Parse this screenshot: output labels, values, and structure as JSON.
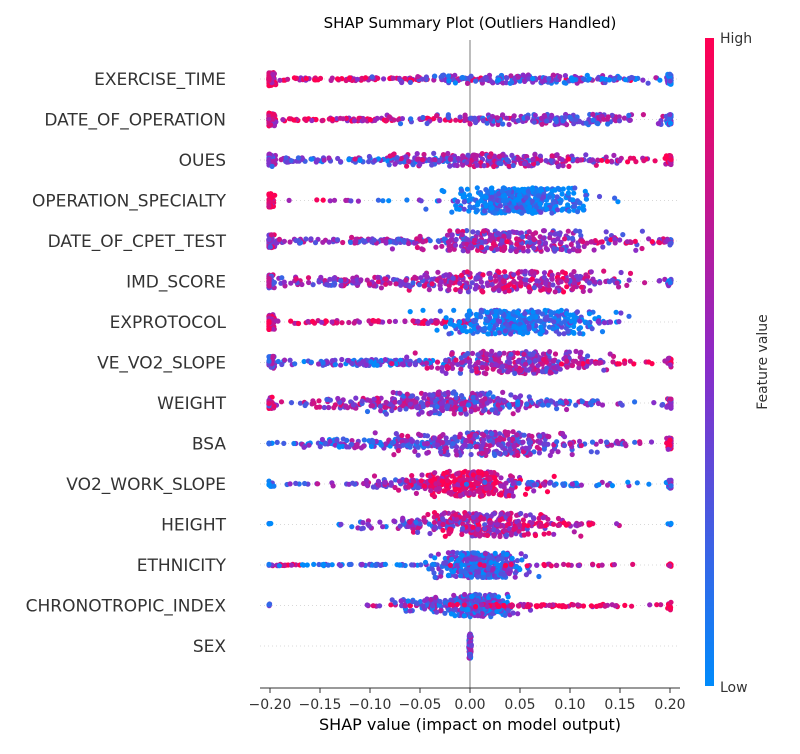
{
  "chart_data": {
    "type": "scatter",
    "subtype": "shap-beeswarm",
    "title": "SHAP Summary Plot (Outliers Handled)",
    "xlabel": "SHAP value (impact on model output)",
    "xlim": [
      -0.21,
      0.21
    ],
    "xticks": [
      -0.2,
      -0.15,
      -0.1,
      -0.05,
      0.0,
      0.05,
      0.1,
      0.15,
      0.2
    ],
    "xtick_labels": [
      "−0.20",
      "−0.15",
      "−0.10",
      "−0.05",
      "0.00",
      "0.05",
      "0.10",
      "0.15",
      "0.20"
    ],
    "grid": false,
    "zero_line": true,
    "colorbar": {
      "label": "Feature value",
      "high_label": "High",
      "low_label": "Low",
      "low_color": "#008bfb",
      "high_color": "#ff0052"
    },
    "features": [
      {
        "name": "EXERCISE_TIME",
        "clusters": [
          {
            "center": -0.2,
            "spread": 0.003,
            "count": 60,
            "width": 0.45,
            "value": 0.85
          },
          {
            "center": -0.1,
            "spread": 0.1,
            "count": 140,
            "width": 0.1,
            "value": 0.8
          },
          {
            "center": 0.06,
            "spread": 0.06,
            "count": 150,
            "width": 0.3,
            "value": 0.35
          },
          {
            "center": 0.15,
            "spread": 0.05,
            "count": 40,
            "width": 0.12,
            "value": 0.15
          },
          {
            "center": 0.2,
            "spread": 0.002,
            "count": 25,
            "width": 0.35,
            "value": 0.2
          }
        ]
      },
      {
        "name": "DATE_OF_OPERATION",
        "clusters": [
          {
            "center": -0.2,
            "spread": 0.003,
            "count": 55,
            "width": 0.45,
            "value": 0.8
          },
          {
            "center": -0.09,
            "spread": 0.1,
            "count": 130,
            "width": 0.1,
            "value": 0.8
          },
          {
            "center": 0.07,
            "spread": 0.065,
            "count": 170,
            "width": 0.35,
            "value": 0.45
          },
          {
            "center": 0.2,
            "spread": 0.002,
            "count": 25,
            "width": 0.35,
            "value": 0.2
          }
        ]
      },
      {
        "name": "OUES",
        "clusters": [
          {
            "center": -0.2,
            "spread": 0.003,
            "count": 45,
            "width": 0.45,
            "value": 0.35
          },
          {
            "center": -0.08,
            "spread": 0.09,
            "count": 150,
            "width": 0.15,
            "value": 0.3
          },
          {
            "center": 0.03,
            "spread": 0.05,
            "count": 190,
            "width": 0.45,
            "value": 0.55
          },
          {
            "center": 0.15,
            "spread": 0.04,
            "count": 30,
            "width": 0.12,
            "value": 0.8
          },
          {
            "center": 0.2,
            "spread": 0.002,
            "count": 20,
            "width": 0.3,
            "value": 0.85
          }
        ]
      },
      {
        "name": "OPERATION_SPECIALTY",
        "clusters": [
          {
            "center": -0.2,
            "spread": 0.002,
            "count": 40,
            "width": 0.45,
            "value": 0.95
          },
          {
            "center": -0.15,
            "spread": 0.025,
            "count": 8,
            "width": 0.04,
            "value": 0.9
          },
          {
            "center": -0.05,
            "spread": 0.04,
            "count": 14,
            "width": 0.05,
            "value": 0.25
          },
          {
            "center": 0.05,
            "spread": 0.03,
            "count": 430,
            "width": 0.85,
            "value": 0.08
          }
        ]
      },
      {
        "name": "DATE_OF_CPET_TEST",
        "clusters": [
          {
            "center": -0.2,
            "spread": 0.003,
            "count": 40,
            "width": 0.45,
            "value": 0.6
          },
          {
            "center": -0.1,
            "spread": 0.07,
            "count": 130,
            "width": 0.15,
            "value": 0.45
          },
          {
            "center": 0.04,
            "spread": 0.05,
            "count": 260,
            "width": 0.7,
            "value": 0.55
          },
          {
            "center": 0.15,
            "spread": 0.04,
            "count": 40,
            "width": 0.15,
            "value": 0.75
          },
          {
            "center": 0.2,
            "spread": 0.002,
            "count": 15,
            "width": 0.3,
            "value": 0.4
          }
        ]
      },
      {
        "name": "IMD_SCORE",
        "clusters": [
          {
            "center": -0.2,
            "spread": 0.003,
            "count": 30,
            "width": 0.45,
            "value": 0.5
          },
          {
            "center": -0.09,
            "spread": 0.07,
            "count": 160,
            "width": 0.3,
            "value": 0.55
          },
          {
            "center": 0.05,
            "spread": 0.05,
            "count": 240,
            "width": 0.7,
            "value": 0.65
          },
          {
            "center": 0.15,
            "spread": 0.04,
            "count": 25,
            "width": 0.1,
            "value": 0.4
          },
          {
            "center": 0.2,
            "spread": 0.002,
            "count": 10,
            "width": 0.3,
            "value": 0.3
          }
        ]
      },
      {
        "name": "EXPROTOCOL",
        "clusters": [
          {
            "center": -0.2,
            "spread": 0.002,
            "count": 80,
            "width": 0.5,
            "value": 0.9
          },
          {
            "center": -0.12,
            "spread": 0.05,
            "count": 60,
            "width": 0.1,
            "value": 0.85
          },
          {
            "center": -0.03,
            "spread": 0.02,
            "count": 30,
            "width": 0.1,
            "value": 0.75
          },
          {
            "center": 0.05,
            "spread": 0.035,
            "count": 380,
            "width": 0.8,
            "value": 0.08
          },
          {
            "center": 0.12,
            "spread": 0.015,
            "count": 20,
            "width": 0.08,
            "value": 0.15
          }
        ]
      },
      {
        "name": "VE_VO2_SLOPE",
        "clusters": [
          {
            "center": -0.2,
            "spread": 0.003,
            "count": 35,
            "width": 0.45,
            "value": 0.4
          },
          {
            "center": -0.09,
            "spread": 0.05,
            "count": 130,
            "width": 0.2,
            "value": 0.3
          },
          {
            "center": 0.05,
            "spread": 0.04,
            "count": 270,
            "width": 0.75,
            "value": 0.55
          },
          {
            "center": 0.14,
            "spread": 0.04,
            "count": 30,
            "width": 0.12,
            "value": 0.85
          },
          {
            "center": 0.2,
            "spread": 0.002,
            "count": 10,
            "width": 0.3,
            "value": 0.85
          }
        ]
      },
      {
        "name": "WEIGHT",
        "clusters": [
          {
            "center": -0.2,
            "spread": 0.003,
            "count": 25,
            "width": 0.4,
            "value": 0.8
          },
          {
            "center": -0.08,
            "spread": 0.06,
            "count": 150,
            "width": 0.35,
            "value": 0.55
          },
          {
            "center": -0.01,
            "spread": 0.04,
            "count": 200,
            "width": 0.75,
            "value": 0.45
          },
          {
            "center": 0.09,
            "spread": 0.05,
            "count": 70,
            "width": 0.15,
            "value": 0.4
          },
          {
            "center": 0.2,
            "spread": 0.002,
            "count": 20,
            "width": 0.35,
            "value": 0.6
          }
        ]
      },
      {
        "name": "BSA",
        "clusters": [
          {
            "center": -0.17,
            "spread": 0.03,
            "count": 25,
            "width": 0.04,
            "value": 0.15
          },
          {
            "center": -0.07,
            "spread": 0.05,
            "count": 130,
            "width": 0.3,
            "value": 0.35
          },
          {
            "center": 0.02,
            "spread": 0.04,
            "count": 240,
            "width": 0.8,
            "value": 0.5
          },
          {
            "center": 0.12,
            "spread": 0.04,
            "count": 50,
            "width": 0.15,
            "value": 0.5
          },
          {
            "center": 0.2,
            "spread": 0.002,
            "count": 30,
            "width": 0.4,
            "value": 0.8
          }
        ]
      },
      {
        "name": "VO2_WORK_SLOPE",
        "clusters": [
          {
            "center": -0.2,
            "spread": 0.003,
            "count": 10,
            "width": 0.2,
            "value": 0.15
          },
          {
            "center": -0.14,
            "spread": 0.03,
            "count": 15,
            "width": 0.05,
            "value": 0.45
          },
          {
            "center": -0.04,
            "spread": 0.04,
            "count": 120,
            "width": 0.3,
            "value": 0.55
          },
          {
            "center": 0.0,
            "spread": 0.025,
            "count": 260,
            "width": 0.85,
            "value": 0.85
          },
          {
            "center": 0.1,
            "spread": 0.05,
            "count": 50,
            "width": 0.12,
            "value": 0.3
          },
          {
            "center": 0.2,
            "spread": 0.002,
            "count": 15,
            "width": 0.3,
            "value": 0.3
          }
        ]
      },
      {
        "name": "HEIGHT",
        "clusters": [
          {
            "center": -0.2,
            "spread": 0.002,
            "count": 4,
            "width": 0.1,
            "value": 0.1
          },
          {
            "center": -0.13,
            "spread": 0.005,
            "count": 4,
            "width": 0.05,
            "value": 0.2
          },
          {
            "center": -0.05,
            "spread": 0.03,
            "count": 80,
            "width": 0.3,
            "value": 0.4
          },
          {
            "center": 0.01,
            "spread": 0.035,
            "count": 250,
            "width": 0.8,
            "value": 0.65
          },
          {
            "center": 0.09,
            "spread": 0.03,
            "count": 40,
            "width": 0.12,
            "value": 0.85
          },
          {
            "center": 0.2,
            "spread": 0.002,
            "count": 4,
            "width": 0.1,
            "value": 0.1
          }
        ]
      },
      {
        "name": "ETHNICITY",
        "clusters": [
          {
            "center": -0.19,
            "spread": 0.01,
            "count": 15,
            "width": 0.05,
            "value": 0.85
          },
          {
            "center": -0.1,
            "spread": 0.06,
            "count": 60,
            "width": 0.05,
            "value": 0.2
          },
          {
            "center": 0.01,
            "spread": 0.02,
            "count": 350,
            "width": 0.85,
            "value": 0.25
          },
          {
            "center": 0.1,
            "spread": 0.05,
            "count": 30,
            "width": 0.06,
            "value": 0.8
          },
          {
            "center": 0.2,
            "spread": 0.002,
            "count": 6,
            "width": 0.1,
            "value": 0.9
          }
        ]
      },
      {
        "name": "CHRONOTROPIC_INDEX",
        "clusters": [
          {
            "center": -0.2,
            "spread": 0.002,
            "count": 3,
            "width": 0.1,
            "value": 0.2
          },
          {
            "center": -0.07,
            "spread": 0.025,
            "count": 20,
            "width": 0.05,
            "value": 0.7
          },
          {
            "center": -0.02,
            "spread": 0.025,
            "count": 130,
            "width": 0.45,
            "value": 0.35
          },
          {
            "center": 0.01,
            "spread": 0.015,
            "count": 200,
            "width": 0.75,
            "value": 0.25
          },
          {
            "center": 0.08,
            "spread": 0.05,
            "count": 80,
            "width": 0.08,
            "value": 0.9
          },
          {
            "center": 0.2,
            "spread": 0.002,
            "count": 12,
            "width": 0.3,
            "value": 0.9
          }
        ]
      },
      {
        "name": "SEX",
        "clusters": [
          {
            "center": 0.0,
            "spread": 0.0004,
            "count": 200,
            "width": 0.8,
            "value": 0.35
          }
        ]
      }
    ]
  }
}
